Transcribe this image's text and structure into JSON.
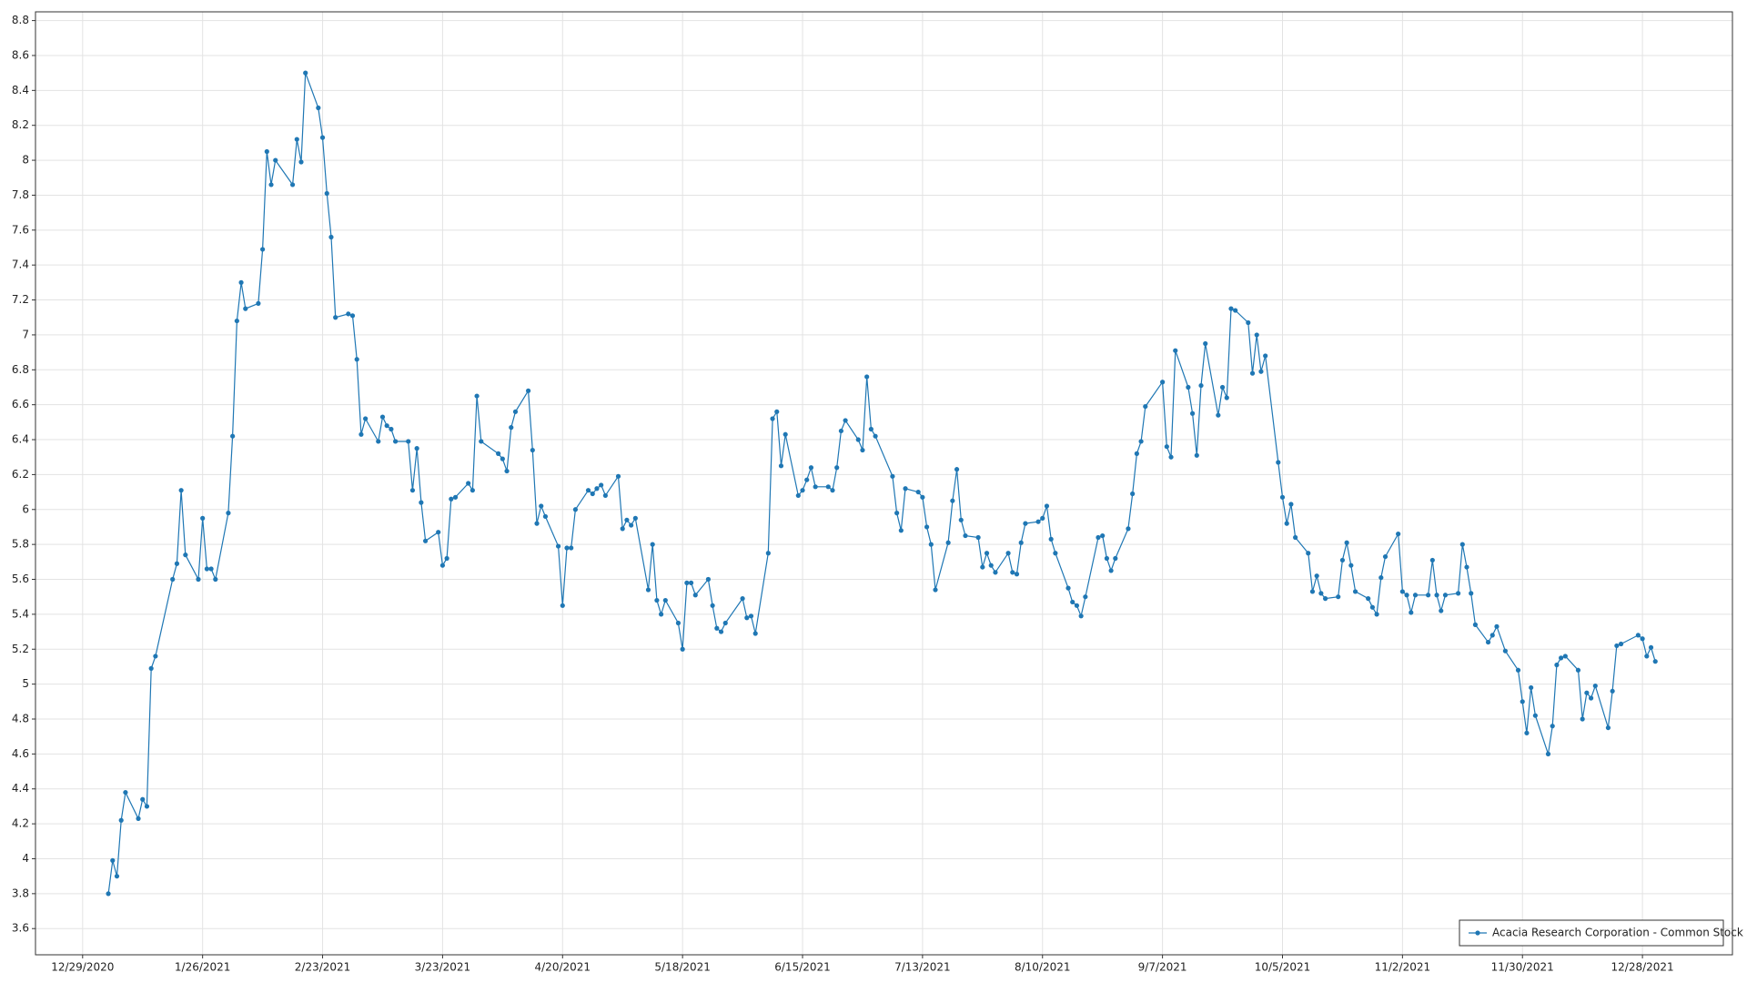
{
  "chart_data": {
    "type": "line",
    "x": [
      "1/4/2021",
      "1/5/2021",
      "1/6/2021",
      "1/7/2021",
      "1/8/2021",
      "1/11/2021",
      "1/12/2021",
      "1/13/2021",
      "1/14/2021",
      "1/15/2021",
      "1/19/2021",
      "1/20/2021",
      "1/21/2021",
      "1/22/2021",
      "1/25/2021",
      "1/26/2021",
      "1/27/2021",
      "1/28/2021",
      "1/29/2021",
      "2/1/2021",
      "2/2/2021",
      "2/3/2021",
      "2/4/2021",
      "2/5/2021",
      "2/8/2021",
      "2/9/2021",
      "2/10/2021",
      "2/11/2021",
      "2/12/2021",
      "2/16/2021",
      "2/17/2021",
      "2/18/2021",
      "2/19/2021",
      "2/22/2021",
      "2/23/2021",
      "2/24/2021",
      "2/25/2021",
      "2/26/2021",
      "3/1/2021",
      "3/2/2021",
      "3/3/2021",
      "3/4/2021",
      "3/5/2021",
      "3/8/2021",
      "3/9/2021",
      "3/10/2021",
      "3/11/2021",
      "3/12/2021",
      "3/15/2021",
      "3/16/2021",
      "3/17/2021",
      "3/18/2021",
      "3/19/2021",
      "3/22/2021",
      "3/23/2021",
      "3/24/2021",
      "3/25/2021",
      "3/26/2021",
      "3/29/2021",
      "3/30/2021",
      "3/31/2021",
      "4/1/2021",
      "4/5/2021",
      "4/6/2021",
      "4/7/2021",
      "4/8/2021",
      "4/9/2021",
      "4/12/2021",
      "4/13/2021",
      "4/14/2021",
      "4/15/2021",
      "4/16/2021",
      "4/19/2021",
      "4/20/2021",
      "4/21/2021",
      "4/22/2021",
      "4/23/2021",
      "4/26/2021",
      "4/27/2021",
      "4/28/2021",
      "4/29/2021",
      "4/30/2021",
      "5/3/2021",
      "5/4/2021",
      "5/5/2021",
      "5/6/2021",
      "5/7/2021",
      "5/10/2021",
      "5/11/2021",
      "5/12/2021",
      "5/13/2021",
      "5/14/2021",
      "5/17/2021",
      "5/18/2021",
      "5/19/2021",
      "5/20/2021",
      "5/21/2021",
      "5/24/2021",
      "5/25/2021",
      "5/26/2021",
      "5/27/2021",
      "5/28/2021",
      "6/1/2021",
      "6/2/2021",
      "6/3/2021",
      "6/4/2021",
      "6/7/2021",
      "6/8/2021",
      "6/9/2021",
      "6/10/2021",
      "6/11/2021",
      "6/14/2021",
      "6/15/2021",
      "6/16/2021",
      "6/17/2021",
      "6/18/2021",
      "6/21/2021",
      "6/22/2021",
      "6/23/2021",
      "6/24/2021",
      "6/25/2021",
      "6/28/2021",
      "6/29/2021",
      "6/30/2021",
      "7/1/2021",
      "7/2/2021",
      "7/6/2021",
      "7/7/2021",
      "7/8/2021",
      "7/9/2021",
      "7/12/2021",
      "7/13/2021",
      "7/14/2021",
      "7/15/2021",
      "7/16/2021",
      "7/19/2021",
      "7/20/2021",
      "7/21/2021",
      "7/22/2021",
      "7/23/2021",
      "7/26/2021",
      "7/27/2021",
      "7/28/2021",
      "7/29/2021",
      "7/30/2021",
      "8/2/2021",
      "8/3/2021",
      "8/4/2021",
      "8/5/2021",
      "8/6/2021",
      "8/9/2021",
      "8/10/2021",
      "8/11/2021",
      "8/12/2021",
      "8/13/2021",
      "8/16/2021",
      "8/17/2021",
      "8/18/2021",
      "8/19/2021",
      "8/20/2021",
      "8/23/2021",
      "8/24/2021",
      "8/25/2021",
      "8/26/2021",
      "8/27/2021",
      "8/30/2021",
      "8/31/2021",
      "9/1/2021",
      "9/2/2021",
      "9/3/2021",
      "9/7/2021",
      "9/8/2021",
      "9/9/2021",
      "9/10/2021",
      "9/13/2021",
      "9/14/2021",
      "9/15/2021",
      "9/16/2021",
      "9/17/2021",
      "9/20/2021",
      "9/21/2021",
      "9/22/2021",
      "9/23/2021",
      "9/24/2021",
      "9/27/2021",
      "9/28/2021",
      "9/29/2021",
      "9/30/2021",
      "10/1/2021",
      "10/4/2021",
      "10/5/2021",
      "10/6/2021",
      "10/7/2021",
      "10/8/2021",
      "10/11/2021",
      "10/12/2021",
      "10/13/2021",
      "10/14/2021",
      "10/15/2021",
      "10/18/2021",
      "10/19/2021",
      "10/20/2021",
      "10/21/2021",
      "10/22/2021",
      "10/25/2021",
      "10/26/2021",
      "10/27/2021",
      "10/28/2021",
      "10/29/2021",
      "11/1/2021",
      "11/2/2021",
      "11/3/2021",
      "11/4/2021",
      "11/5/2021",
      "11/8/2021",
      "11/9/2021",
      "11/10/2021",
      "11/11/2021",
      "11/12/2021",
      "11/15/2021",
      "11/16/2021",
      "11/17/2021",
      "11/18/2021",
      "11/19/2021",
      "11/22/2021",
      "11/23/2021",
      "11/24/2021",
      "11/26/2021",
      "11/29/2021",
      "11/30/2021",
      "12/1/2021",
      "12/2/2021",
      "12/3/2021",
      "12/6/2021",
      "12/7/2021",
      "12/8/2021",
      "12/9/2021",
      "12/10/2021",
      "12/13/2021",
      "12/14/2021",
      "12/15/2021",
      "12/16/2021",
      "12/17/2021",
      "12/20/2021",
      "12/21/2021",
      "12/22/2021",
      "12/23/2021",
      "12/27/2021",
      "12/28/2021",
      "12/29/2021",
      "12/30/2021",
      "12/31/2021"
    ],
    "series": [
      {
        "name": "Acacia Research Corporation - Common Stock",
        "color": "#1f77b4",
        "values": [
          3.8,
          3.99,
          3.9,
          4.22,
          4.38,
          4.23,
          4.34,
          4.3,
          5.09,
          5.16,
          5.6,
          5.69,
          6.11,
          5.74,
          5.6,
          5.95,
          5.66,
          5.66,
          5.6,
          5.98,
          6.42,
          7.08,
          7.3,
          7.15,
          7.18,
          7.49,
          8.05,
          7.86,
          8.0,
          7.86,
          8.12,
          7.99,
          8.5,
          8.3,
          8.13,
          7.81,
          7.56,
          7.1,
          7.12,
          7.11,
          6.86,
          6.43,
          6.52,
          6.39,
          6.53,
          6.48,
          6.46,
          6.39,
          6.39,
          6.11,
          6.35,
          6.04,
          5.82,
          5.87,
          5.68,
          5.72,
          6.06,
          6.07,
          6.15,
          6.11,
          6.65,
          6.39,
          6.32,
          6.29,
          6.22,
          6.47,
          6.56,
          6.68,
          6.34,
          5.92,
          6.02,
          5.96,
          5.79,
          5.45,
          5.78,
          5.78,
          6.0,
          6.11,
          6.09,
          6.12,
          6.14,
          6.08,
          6.19,
          5.89,
          5.94,
          5.91,
          5.95,
          5.54,
          5.8,
          5.48,
          5.4,
          5.48,
          5.35,
          5.2,
          5.58,
          5.58,
          5.51,
          5.6,
          5.45,
          5.32,
          5.3,
          5.35,
          5.49,
          5.38,
          5.39,
          5.29,
          5.75,
          6.52,
          6.56,
          6.25,
          6.43,
          6.08,
          6.11,
          6.17,
          6.24,
          6.13,
          6.13,
          6.11,
          6.24,
          6.45,
          6.51,
          6.4,
          6.34,
          6.76,
          6.46,
          6.42,
          6.19,
          5.98,
          5.88,
          6.12,
          6.1,
          6.07,
          5.9,
          5.8,
          5.54,
          5.81,
          6.05,
          6.23,
          5.94,
          5.85,
          5.84,
          5.67,
          5.75,
          5.68,
          5.64,
          5.75,
          5.64,
          5.63,
          5.81,
          5.92,
          5.93,
          5.95,
          6.02,
          5.83,
          5.75,
          5.55,
          5.47,
          5.45,
          5.39,
          5.5,
          5.84,
          5.85,
          5.72,
          5.65,
          5.72,
          5.89,
          6.09,
          6.32,
          6.39,
          6.59,
          6.73,
          6.36,
          6.3,
          6.91,
          6.7,
          6.55,
          6.31,
          6.71,
          6.95,
          6.54,
          6.7,
          6.64,
          7.15,
          7.14,
          7.07,
          6.78,
          7.0,
          6.79,
          6.88,
          6.27,
          6.07,
          5.92,
          6.03,
          5.84,
          5.75,
          5.53,
          5.62,
          5.52,
          5.49,
          5.5,
          5.71,
          5.81,
          5.68,
          5.53,
          5.49,
          5.44,
          5.4,
          5.61,
          5.73,
          5.86,
          5.53,
          5.51,
          5.41,
          5.51,
          5.51,
          5.71,
          5.51,
          5.42,
          5.51,
          5.52,
          5.8,
          5.67,
          5.52,
          5.34,
          5.24,
          5.28,
          5.33,
          5.19,
          5.08,
          4.9,
          4.72,
          4.98,
          4.82,
          4.6,
          4.76,
          5.11,
          5.15,
          5.16,
          5.08,
          4.8,
          4.95,
          4.92,
          4.99,
          4.75,
          4.96,
          5.22,
          5.23,
          5.28,
          5.26,
          5.16,
          5.21,
          5.13
        ]
      }
    ],
    "xlim": [
      "12/18/2020",
      "1/18/2022"
    ],
    "xticks": [
      "12/29/2020",
      "1/26/2021",
      "2/23/2021",
      "3/23/2021",
      "4/20/2021",
      "5/18/2021",
      "6/15/2021",
      "7/13/2021",
      "8/10/2021",
      "9/7/2021",
      "10/5/2021",
      "11/2/2021",
      "11/30/2021",
      "12/28/2021"
    ],
    "ylim": [
      3.45,
      8.85
    ],
    "yticks": [
      3.6,
      3.8,
      4,
      4.2,
      4.4,
      4.6,
      4.8,
      5,
      5.2,
      5.4,
      5.6,
      5.8,
      6,
      6.2,
      6.4,
      6.6,
      6.8,
      7,
      7.2,
      7.4,
      7.6,
      7.8,
      8,
      8.2,
      8.4,
      8.6,
      8.8
    ],
    "grid": true,
    "legend": "lower right"
  }
}
